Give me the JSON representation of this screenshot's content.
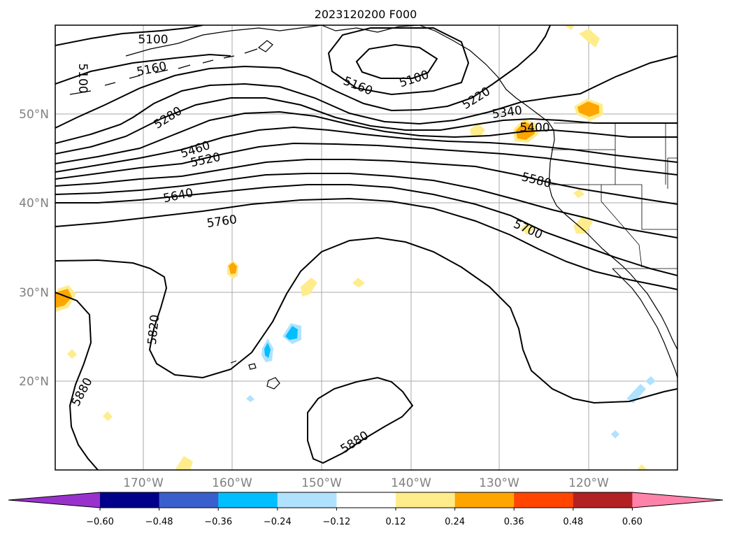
{
  "title": "2023120200 F000",
  "map": {
    "lat_labels": [
      "50°N",
      "40°N",
      "30°N",
      "20°N"
    ],
    "lon_labels": [
      "170°W",
      "160°W",
      "150°W",
      "140°W",
      "130°W",
      "120°W"
    ],
    "contour_labels": [
      "5100",
      "5100",
      "5160",
      "5160",
      "5100",
      "5220",
      "5280",
      "5340",
      "5400",
      "5460",
      "5520",
      "5580",
      "5640",
      "5700",
      "5760",
      "5820",
      "5880",
      "5880"
    ],
    "colorbar": {
      "ticks": [
        "−0.60",
        "−0.48",
        "−0.36",
        "−0.24",
        "−0.12",
        "0.12",
        "0.24",
        "0.36",
        "0.48",
        "0.60"
      ],
      "colors": [
        "#9932cc",
        "#00008b",
        "#3a5fcd",
        "#00bfff",
        "#b0e2ff",
        "#ffffff",
        "#ffec8b",
        "#ffa500",
        "#ff4500",
        "#b22222",
        "#ff82ab"
      ]
    }
  }
}
